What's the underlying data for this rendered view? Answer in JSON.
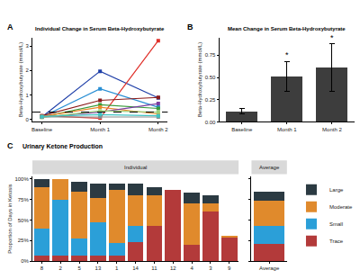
{
  "chart_data": [
    {
      "panel": "A",
      "type": "line",
      "title": "Individual Change in Serum Beta-Hydroxybutyrate",
      "y_label": "Beta-Hydroxybutyrate (mmol/L)",
      "categories": [
        "Baseline",
        "Month 1",
        "Month 2"
      ],
      "series": [
        {
          "color": "#1f3fa8",
          "values": [
            0.1,
            1.97,
            0.88
          ]
        },
        {
          "color": "#e0302a",
          "values": [
            0.15,
            0.05,
            3.22
          ]
        },
        {
          "color": "#2a8fd4",
          "values": [
            0.1,
            1.25,
            0.5
          ]
        },
        {
          "color": "#8b1a1a",
          "values": [
            0.15,
            0.78,
            0.9
          ]
        },
        {
          "color": "#3a9a3a",
          "values": [
            0.1,
            0.6,
            0.45
          ]
        },
        {
          "color": "#e8892a",
          "values": [
            0.12,
            0.5,
            0.22
          ]
        },
        {
          "color": "#7b3fa0",
          "values": [
            0.1,
            0.3,
            0.65
          ]
        },
        {
          "color": "#9bd07a",
          "values": [
            0.08,
            0.35,
            0.3
          ]
        },
        {
          "color": "#8c8c8c",
          "values": [
            0.1,
            0.1,
            0.1
          ]
        },
        {
          "color": "#3fc4c4",
          "values": [
            0.12,
            0.2,
            0.15
          ]
        }
      ],
      "reference_line": 0.3,
      "marker": "square",
      "ylim": [
        -0.1,
        3.35
      ],
      "yticks": [
        0,
        1,
        2,
        3
      ],
      "grid": false
    },
    {
      "panel": "B",
      "type": "bar",
      "title": "Mean Change in Serum Beta-Hydroxybutyrate",
      "y_label": "Beta-Hydroxybutyrate (mmol/L)",
      "categories": [
        "Baseline",
        "Month 1",
        "Month 2"
      ],
      "values": [
        0.12,
        0.51,
        0.61
      ],
      "errors": [
        0.03,
        0.17,
        0.27
      ],
      "color": "#3d3d3d",
      "annotations": [
        {
          "category": "Month 1",
          "text": "*"
        },
        {
          "category": "Month 2",
          "text": "*"
        }
      ],
      "ylim": [
        0,
        0.95
      ],
      "yticks": [
        {
          "value": 0,
          "label": "0.00"
        },
        {
          "value": 0.25,
          "label": "0.25"
        },
        {
          "value": 0.5,
          "label": "0.50"
        },
        {
          "value": 0.75,
          "label": "0.75"
        }
      ],
      "grid": false
    },
    {
      "panel": "C",
      "type": "bar",
      "stacked": true,
      "title": "Urinary Ketone Production",
      "y_label": "Proportion of Days in Ketosis",
      "legend": "right",
      "facets": [
        {
          "title": "Individual",
          "categories": [
            "8",
            "2",
            "5",
            "13",
            "1",
            "14",
            "11",
            "12",
            "4",
            "3",
            "9"
          ],
          "series": [
            {
              "name": "Trace",
              "color": "#b33a3a",
              "values": [
                7,
                7,
                7,
                7,
                7,
                23,
                43,
                87,
                20,
                60,
                28
              ]
            },
            {
              "name": "Small",
              "color": "#2b9fd8",
              "values": [
                33,
                68,
                20,
                40,
                15,
                20,
                0,
                0,
                0,
                0,
                1
              ]
            },
            {
              "name": "Moderate",
              "color": "#e08a2c",
              "values": [
                50,
                25,
                57,
                30,
                65,
                37,
                37,
                0,
                50,
                10,
                2
              ]
            },
            {
              "name": "Large",
              "color": "#2b3a42",
              "values": [
                10,
                0,
                13,
                17,
                7,
                14,
                10,
                0,
                13,
                10,
                0
              ]
            }
          ]
        },
        {
          "title": "Average",
          "categories": [
            "Average"
          ],
          "series": [
            {
              "name": "Trace",
              "color": "#b33a3a",
              "values": [
                21
              ]
            },
            {
              "name": "Small",
              "color": "#2b9fd8",
              "values": [
                22
              ]
            },
            {
              "name": "Moderate",
              "color": "#e08a2c",
              "values": [
                31
              ]
            },
            {
              "name": "Large",
              "color": "#2b3a42",
              "values": [
                10
              ]
            }
          ]
        }
      ],
      "ylim": [
        0,
        103
      ],
      "yticks": [
        {
          "value": 0,
          "label": "0%"
        },
        {
          "value": 25,
          "label": "25%"
        },
        {
          "value": 50,
          "label": "50%"
        },
        {
          "value": 75,
          "label": "75%"
        },
        {
          "value": 100,
          "label": "100%"
        }
      ],
      "grid": false
    }
  ]
}
